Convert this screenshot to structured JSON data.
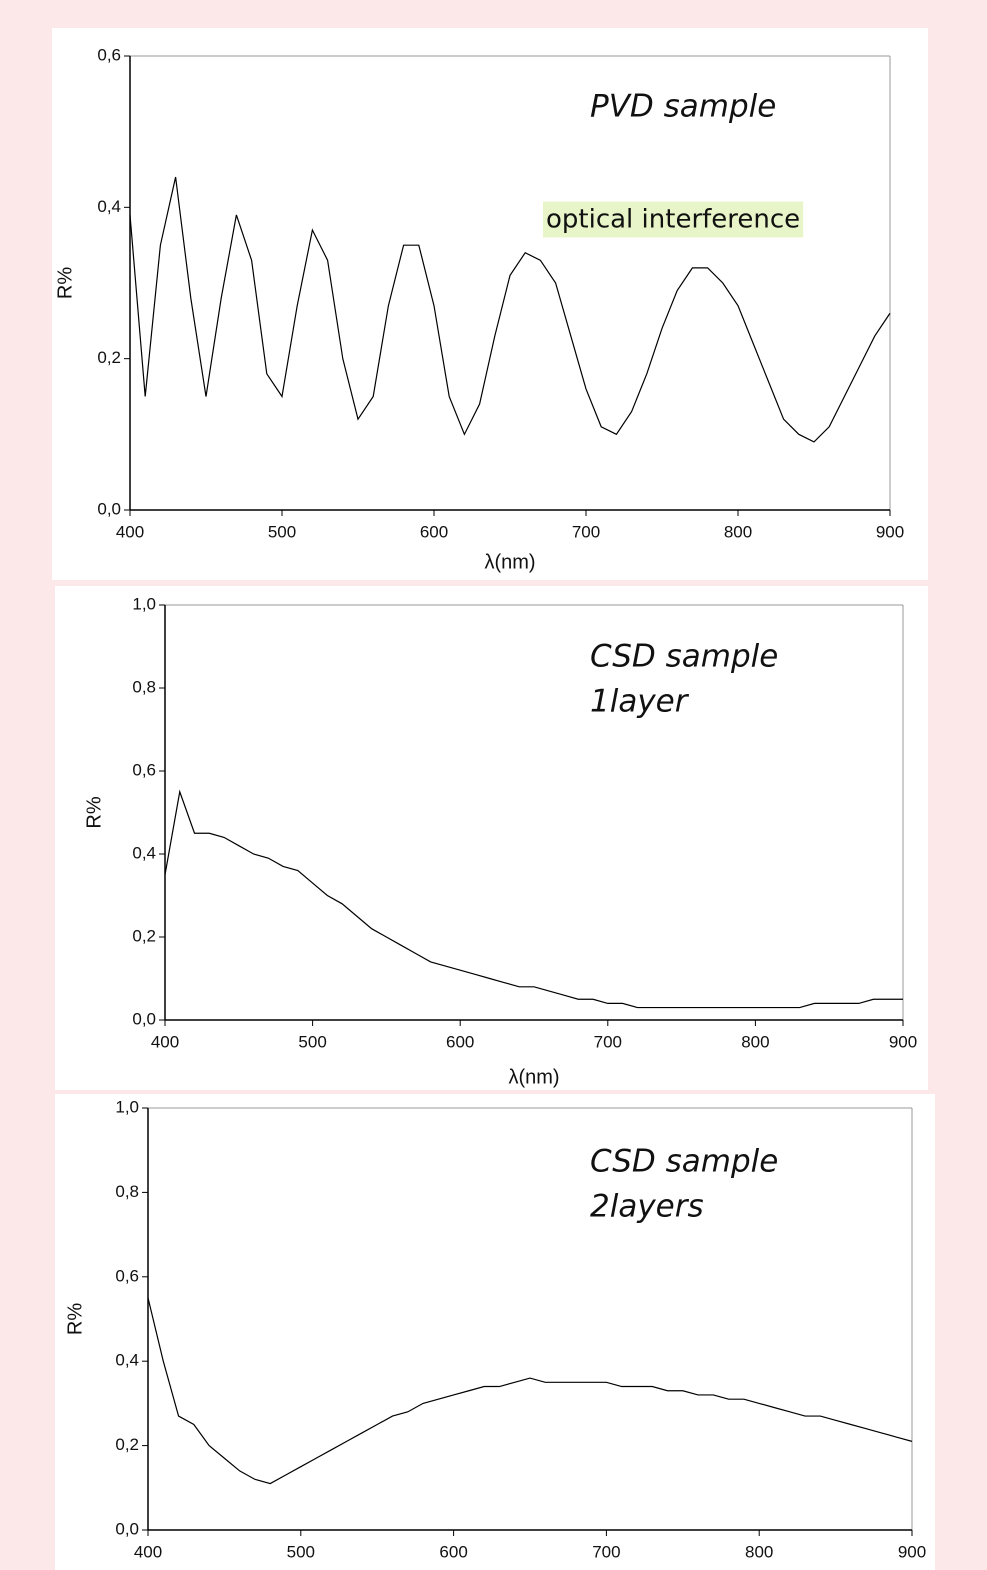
{
  "chart_data": [
    {
      "type": "line",
      "color": "#000000",
      "ylabel": "R%",
      "xlabel": "λ(nm)",
      "annotations": [
        "PVD sample",
        "optical interference"
      ],
      "xlim": [
        400,
        900
      ],
      "ylim": [
        0,
        0.6
      ],
      "xticks": [
        400,
        500,
        600,
        700,
        800,
        900
      ],
      "yticks": [
        {
          "value": 0,
          "label": "0,0"
        },
        {
          "value": 0.2,
          "label": "0,2"
        },
        {
          "value": 0.4,
          "label": "0,4"
        },
        {
          "value": 0.6,
          "label": "0,6"
        }
      ],
      "x": [
        400,
        410,
        420,
        430,
        440,
        450,
        460,
        470,
        480,
        490,
        500,
        510,
        520,
        530,
        540,
        550,
        560,
        570,
        580,
        590,
        600,
        610,
        620,
        630,
        640,
        650,
        660,
        670,
        680,
        690,
        700,
        710,
        720,
        730,
        740,
        750,
        760,
        770,
        780,
        790,
        800,
        810,
        820,
        830,
        840,
        850,
        860,
        870,
        880,
        890,
        900
      ],
      "values": [
        0.39,
        0.15,
        0.35,
        0.44,
        0.28,
        0.15,
        0.28,
        0.39,
        0.33,
        0.18,
        0.15,
        0.27,
        0.37,
        0.33,
        0.2,
        0.12,
        0.15,
        0.27,
        0.35,
        0.35,
        0.27,
        0.15,
        0.1,
        0.14,
        0.23,
        0.31,
        0.34,
        0.33,
        0.3,
        0.23,
        0.16,
        0.11,
        0.1,
        0.13,
        0.18,
        0.24,
        0.29,
        0.32,
        0.32,
        0.3,
        0.27,
        0.22,
        0.17,
        0.12,
        0.1,
        0.09,
        0.11,
        0.15,
        0.19,
        0.23,
        0.26
      ]
    },
    {
      "type": "line",
      "color": "#000000",
      "ylabel": "R%",
      "xlabel": "λ(nm)",
      "annotations": [
        "CSD sample",
        "1layer"
      ],
      "xlim": [
        400,
        900
      ],
      "ylim": [
        0,
        1.0
      ],
      "xticks": [
        400,
        500,
        600,
        700,
        800,
        900
      ],
      "yticks": [
        {
          "value": 0,
          "label": "0,0"
        },
        {
          "value": 0.2,
          "label": "0,2"
        },
        {
          "value": 0.4,
          "label": "0,4"
        },
        {
          "value": 0.6,
          "label": "0,6"
        },
        {
          "value": 0.8,
          "label": "0,8"
        },
        {
          "value": 1.0,
          "label": "1,0"
        }
      ],
      "x": [
        400,
        410,
        420,
        430,
        440,
        450,
        460,
        470,
        480,
        490,
        500,
        510,
        520,
        530,
        540,
        550,
        560,
        570,
        580,
        590,
        600,
        610,
        620,
        630,
        640,
        650,
        660,
        670,
        680,
        690,
        700,
        710,
        720,
        730,
        740,
        750,
        760,
        770,
        780,
        790,
        800,
        810,
        820,
        830,
        840,
        850,
        860,
        870,
        880,
        890,
        900
      ],
      "values": [
        0.35,
        0.55,
        0.45,
        0.45,
        0.44,
        0.42,
        0.4,
        0.39,
        0.37,
        0.36,
        0.33,
        0.3,
        0.28,
        0.25,
        0.22,
        0.2,
        0.18,
        0.16,
        0.14,
        0.13,
        0.12,
        0.11,
        0.1,
        0.09,
        0.08,
        0.08,
        0.07,
        0.06,
        0.05,
        0.05,
        0.04,
        0.04,
        0.03,
        0.03,
        0.03,
        0.03,
        0.03,
        0.03,
        0.03,
        0.03,
        0.03,
        0.03,
        0.03,
        0.03,
        0.04,
        0.04,
        0.04,
        0.04,
        0.05,
        0.05,
        0.05
      ]
    },
    {
      "type": "line",
      "color": "#000000",
      "ylabel": "R%",
      "annotations": [
        "CSD sample",
        "2layers"
      ],
      "xlim": [
        400,
        900
      ],
      "ylim": [
        0,
        1.0
      ],
      "xticks": [
        400,
        500,
        600,
        700,
        800,
        900
      ],
      "yticks": [
        {
          "value": 0,
          "label": "0,0"
        },
        {
          "value": 0.2,
          "label": "0,2"
        },
        {
          "value": 0.4,
          "label": "0,4"
        },
        {
          "value": 0.6,
          "label": "0,6"
        },
        {
          "value": 0.8,
          "label": "0,8"
        },
        {
          "value": 1.0,
          "label": "1,0"
        }
      ],
      "x": [
        400,
        410,
        420,
        430,
        440,
        450,
        460,
        470,
        480,
        490,
        500,
        510,
        520,
        530,
        540,
        550,
        560,
        570,
        580,
        590,
        600,
        610,
        620,
        630,
        640,
        650,
        660,
        670,
        680,
        690,
        700,
        710,
        720,
        730,
        740,
        750,
        760,
        770,
        780,
        790,
        800,
        810,
        820,
        830,
        840,
        850,
        860,
        870,
        880,
        890,
        900
      ],
      "values": [
        0.55,
        0.4,
        0.27,
        0.25,
        0.2,
        0.17,
        0.14,
        0.12,
        0.11,
        0.13,
        0.15,
        0.17,
        0.19,
        0.21,
        0.23,
        0.25,
        0.27,
        0.28,
        0.3,
        0.31,
        0.32,
        0.33,
        0.34,
        0.34,
        0.35,
        0.36,
        0.35,
        0.35,
        0.35,
        0.35,
        0.35,
        0.34,
        0.34,
        0.34,
        0.33,
        0.33,
        0.32,
        0.32,
        0.31,
        0.31,
        0.3,
        0.29,
        0.28,
        0.27,
        0.27,
        0.26,
        0.25,
        0.24,
        0.23,
        0.22,
        0.21
      ]
    }
  ]
}
